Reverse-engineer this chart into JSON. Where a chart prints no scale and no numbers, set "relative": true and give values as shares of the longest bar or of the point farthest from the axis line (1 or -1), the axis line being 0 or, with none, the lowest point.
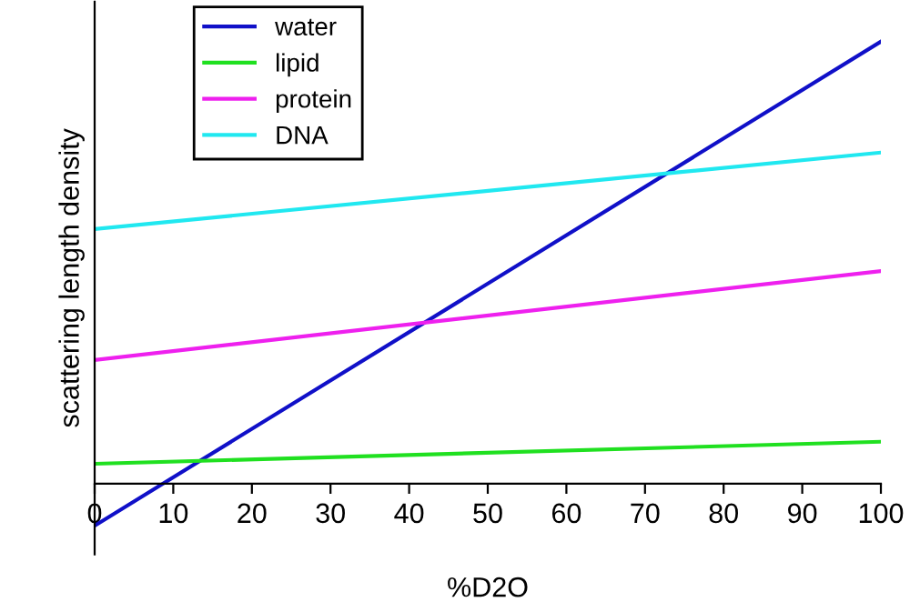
{
  "chart_data": {
    "type": "line",
    "relative": true,
    "xlabel": "%D2O",
    "ylabel": "scattering length density",
    "xlim": [
      0,
      100
    ],
    "xticks": [
      0,
      10,
      20,
      30,
      40,
      50,
      60,
      70,
      80,
      90,
      100
    ],
    "legend": "top left",
    "x": [
      0,
      100
    ],
    "grid": false,
    "marker": "none",
    "line_style": "solid",
    "series": [
      {
        "name": "water",
        "color": "#1010c8",
        "values": [
          -0.095,
          1
        ]
      },
      {
        "name": "lipid",
        "color": "#20e020",
        "values": [
          0.045,
          0.095
        ]
      },
      {
        "name": "protein",
        "color": "#ee20ee",
        "values": [
          0.28,
          0.481
        ]
      },
      {
        "name": "DNA",
        "color": "#20e8f0",
        "values": [
          0.576,
          0.749
        ]
      }
    ]
  }
}
